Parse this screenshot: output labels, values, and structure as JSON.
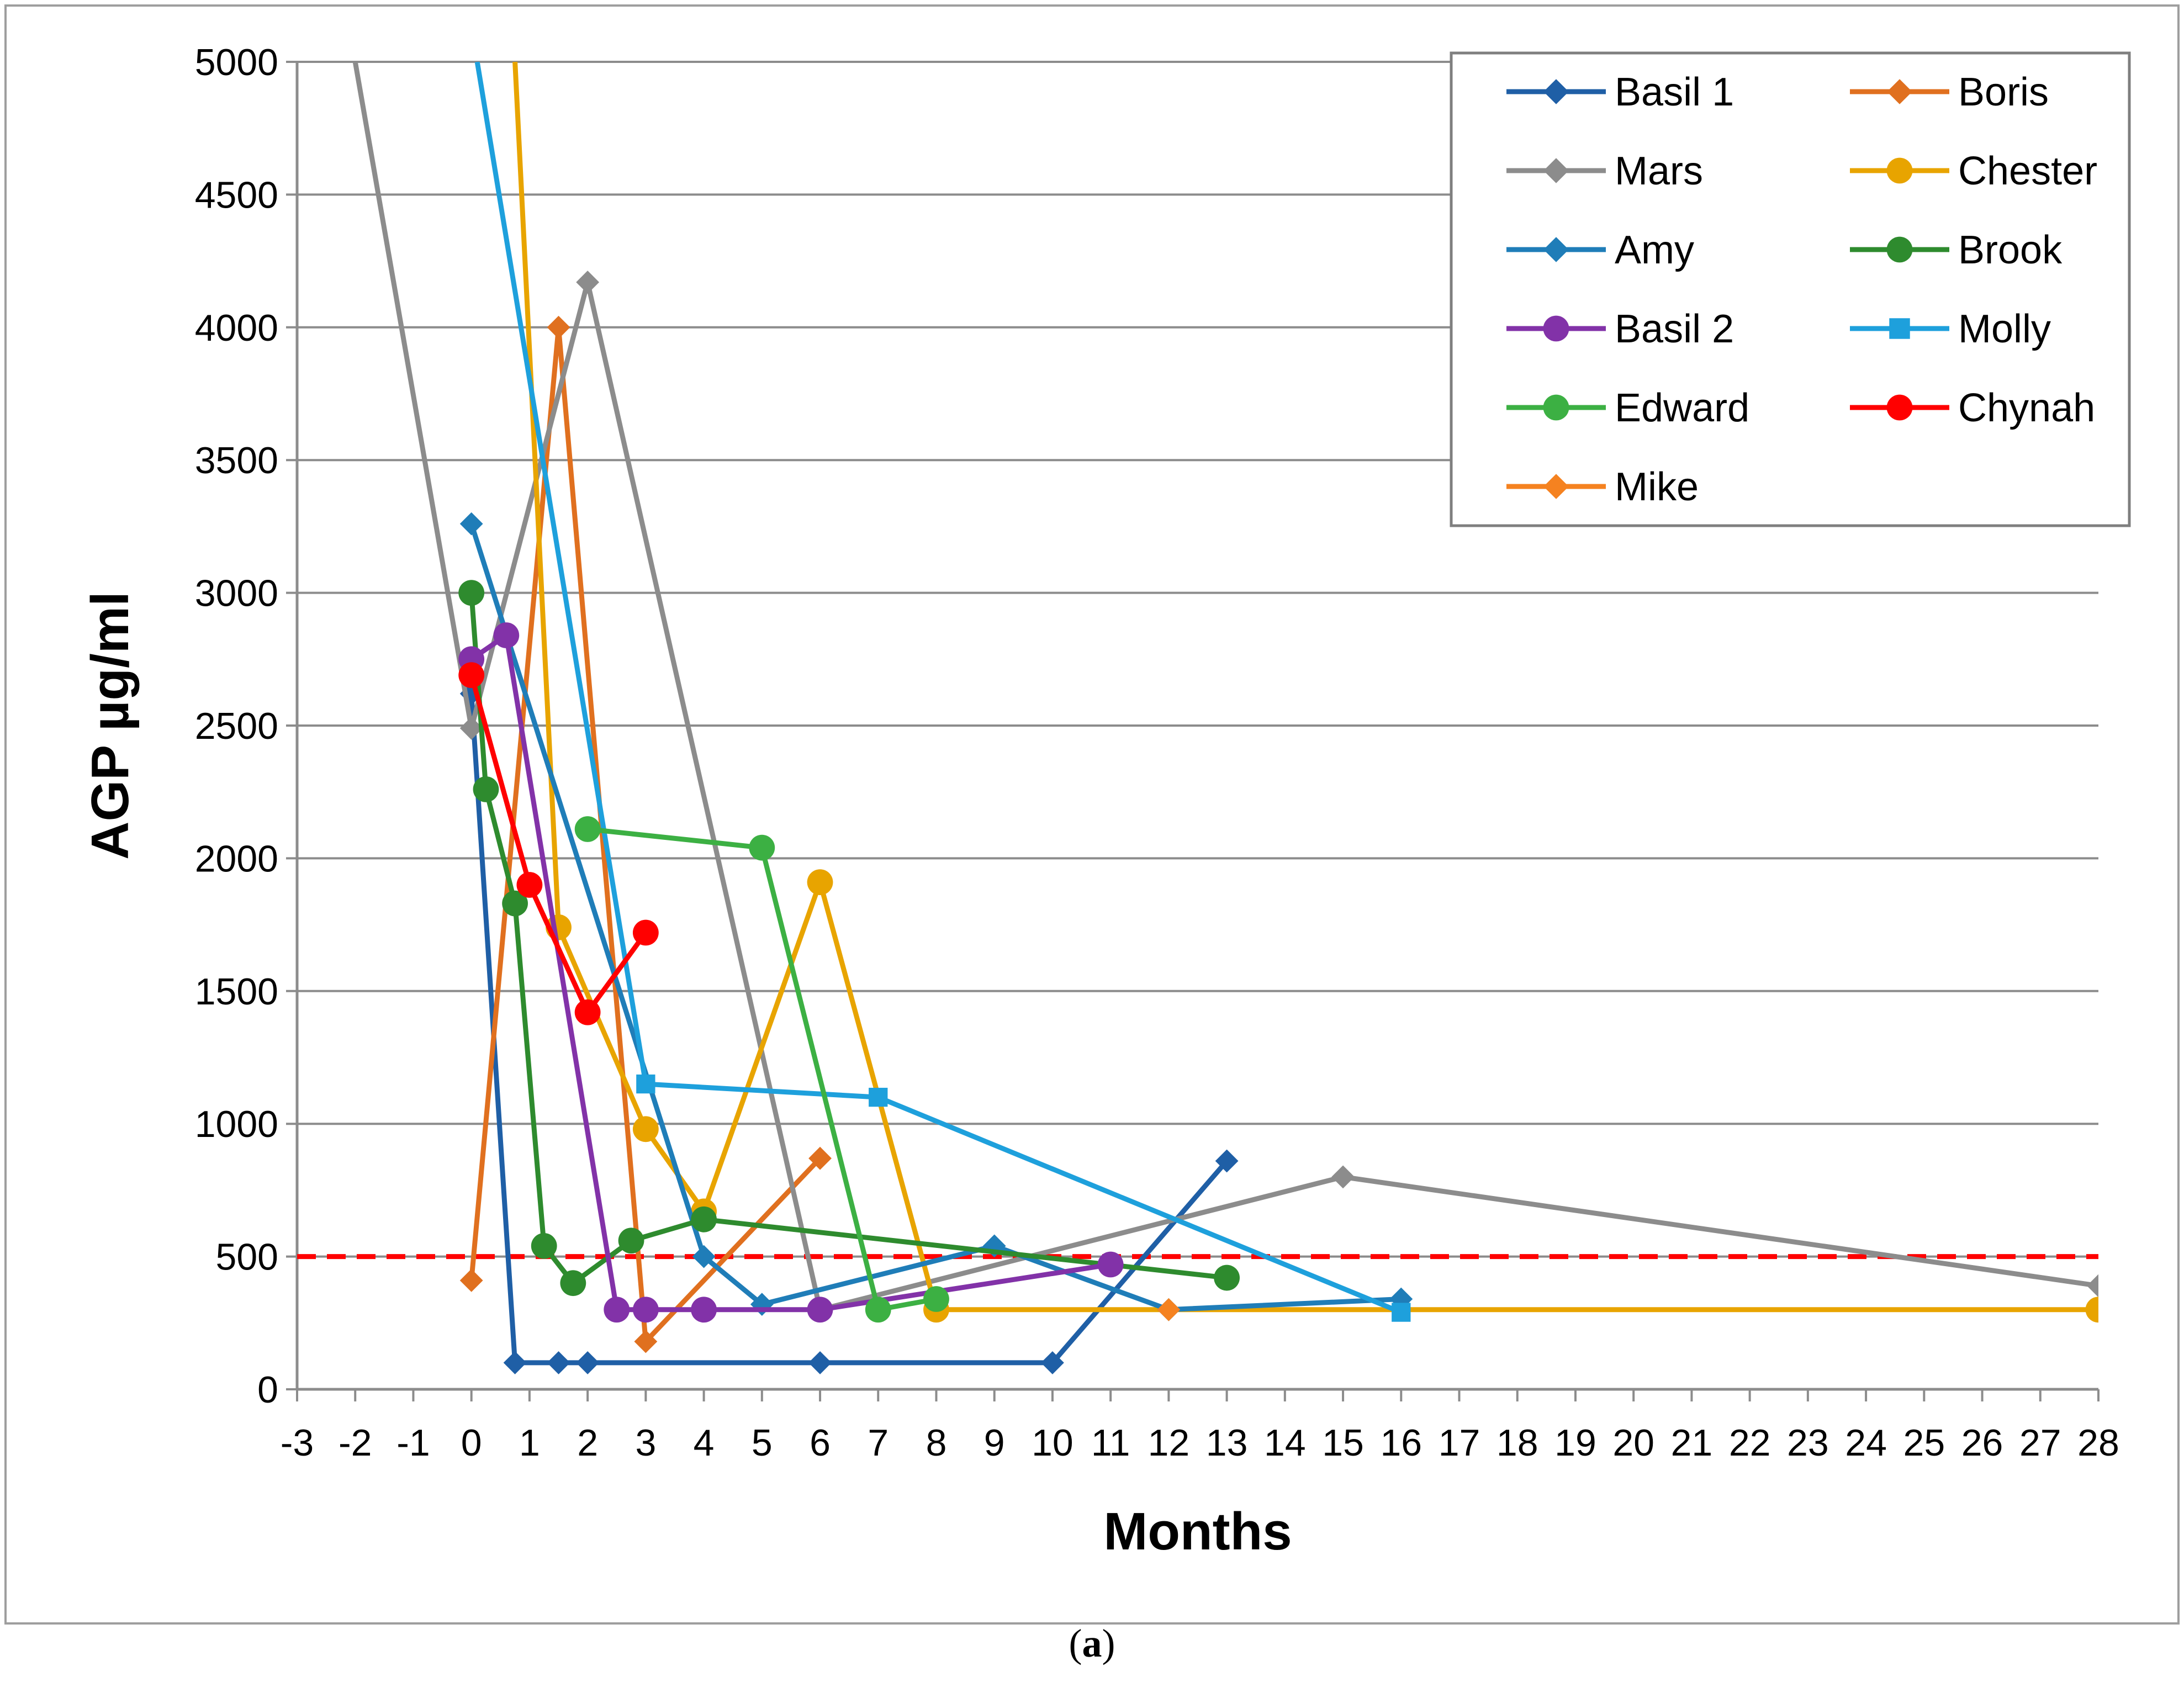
{
  "caption": {
    "open": "(",
    "label": "a",
    "close": ")"
  },
  "chart_data": {
    "type": "line",
    "ylabel": "AGP µg/ml",
    "xlabel": "Months",
    "xlim": [
      -3,
      28
    ],
    "ylim": [
      0,
      5000
    ],
    "x_ticks": [
      -3,
      -2,
      -1,
      0,
      1,
      2,
      3,
      4,
      5,
      6,
      7,
      8,
      9,
      10,
      11,
      12,
      13,
      14,
      15,
      16,
      17,
      18,
      19,
      20,
      21,
      22,
      23,
      24,
      25,
      26,
      27,
      28
    ],
    "y_ticks": [
      0,
      500,
      1000,
      1500,
      2000,
      2500,
      3000,
      3500,
      4000,
      4500,
      5000
    ],
    "grid": "horizontal",
    "legend_position": "top-right",
    "threshold": {
      "value": 500,
      "color": "#ff0000",
      "style": "dashed"
    },
    "series": [
      {
        "name": "Basil 1",
        "color": "#1f5fa6",
        "marker": "diamond",
        "points": [
          [
            0,
            2620
          ],
          [
            0.75,
            100
          ],
          [
            1.5,
            100
          ],
          [
            2,
            100
          ],
          [
            6,
            100
          ],
          [
            10,
            100
          ],
          [
            13,
            860
          ]
        ]
      },
      {
        "name": "Boris",
        "color": "#e0701f",
        "marker": "diamond",
        "points": [
          [
            0,
            410
          ],
          [
            1.5,
            4000
          ],
          [
            3,
            180
          ],
          [
            6,
            870
          ]
        ]
      },
      {
        "name": "Mars",
        "color": "#8c8c8c",
        "marker": "diamond",
        "points": [
          [
            -2,
            5000
          ],
          [
            0,
            2490
          ],
          [
            2,
            4170
          ],
          [
            6,
            300
          ],
          [
            15,
            800
          ],
          [
            28,
            390
          ]
        ]
      },
      {
        "name": "Chester",
        "color": "#e8a400",
        "marker": "circle",
        "points": [
          [
            0.75,
            5000
          ],
          [
            1.5,
            1740
          ],
          [
            3,
            980
          ],
          [
            4,
            670
          ],
          [
            6,
            1910
          ],
          [
            8,
            300
          ],
          [
            28,
            300
          ]
        ]
      },
      {
        "name": "Amy",
        "color": "#1f7db8",
        "marker": "diamond",
        "points": [
          [
            0,
            3260
          ],
          [
            4,
            500
          ],
          [
            5,
            320
          ],
          [
            9,
            540
          ],
          [
            12,
            300
          ],
          [
            16,
            340
          ]
        ]
      },
      {
        "name": "Brook",
        "color": "#2e8b2e",
        "marker": "circle",
        "points": [
          [
            0,
            3000
          ],
          [
            0.25,
            2260
          ],
          [
            0.75,
            1830
          ],
          [
            1.25,
            540
          ],
          [
            1.75,
            400
          ],
          [
            2.75,
            560
          ],
          [
            4,
            640
          ],
          [
            13,
            420
          ]
        ]
      },
      {
        "name": "Basil 2",
        "color": "#8232a8",
        "marker": "circle",
        "points": [
          [
            0,
            2750
          ],
          [
            0.6,
            2840
          ],
          [
            2.5,
            300
          ],
          [
            3,
            300
          ],
          [
            4,
            300
          ],
          [
            6,
            300
          ],
          [
            11,
            470
          ]
        ]
      },
      {
        "name": "Molly",
        "color": "#1ea0dc",
        "marker": "square",
        "points": [
          [
            0.1,
            5000
          ],
          [
            3,
            1150
          ],
          [
            7,
            1100
          ],
          [
            16,
            290
          ]
        ]
      },
      {
        "name": "Edward",
        "color": "#3cb043",
        "marker": "circle",
        "points": [
          [
            2,
            2110
          ],
          [
            5,
            2040
          ],
          [
            7,
            300
          ],
          [
            8,
            340
          ]
        ]
      },
      {
        "name": "Chynah",
        "color": "#ff0000",
        "marker": "circle",
        "points": [
          [
            0,
            2690
          ],
          [
            1,
            1900
          ],
          [
            2,
            1420
          ],
          [
            3,
            1720
          ]
        ]
      },
      {
        "name": "Mike",
        "color": "#f58220",
        "marker": "diamond",
        "points": [
          [
            12,
            300
          ]
        ]
      }
    ]
  }
}
